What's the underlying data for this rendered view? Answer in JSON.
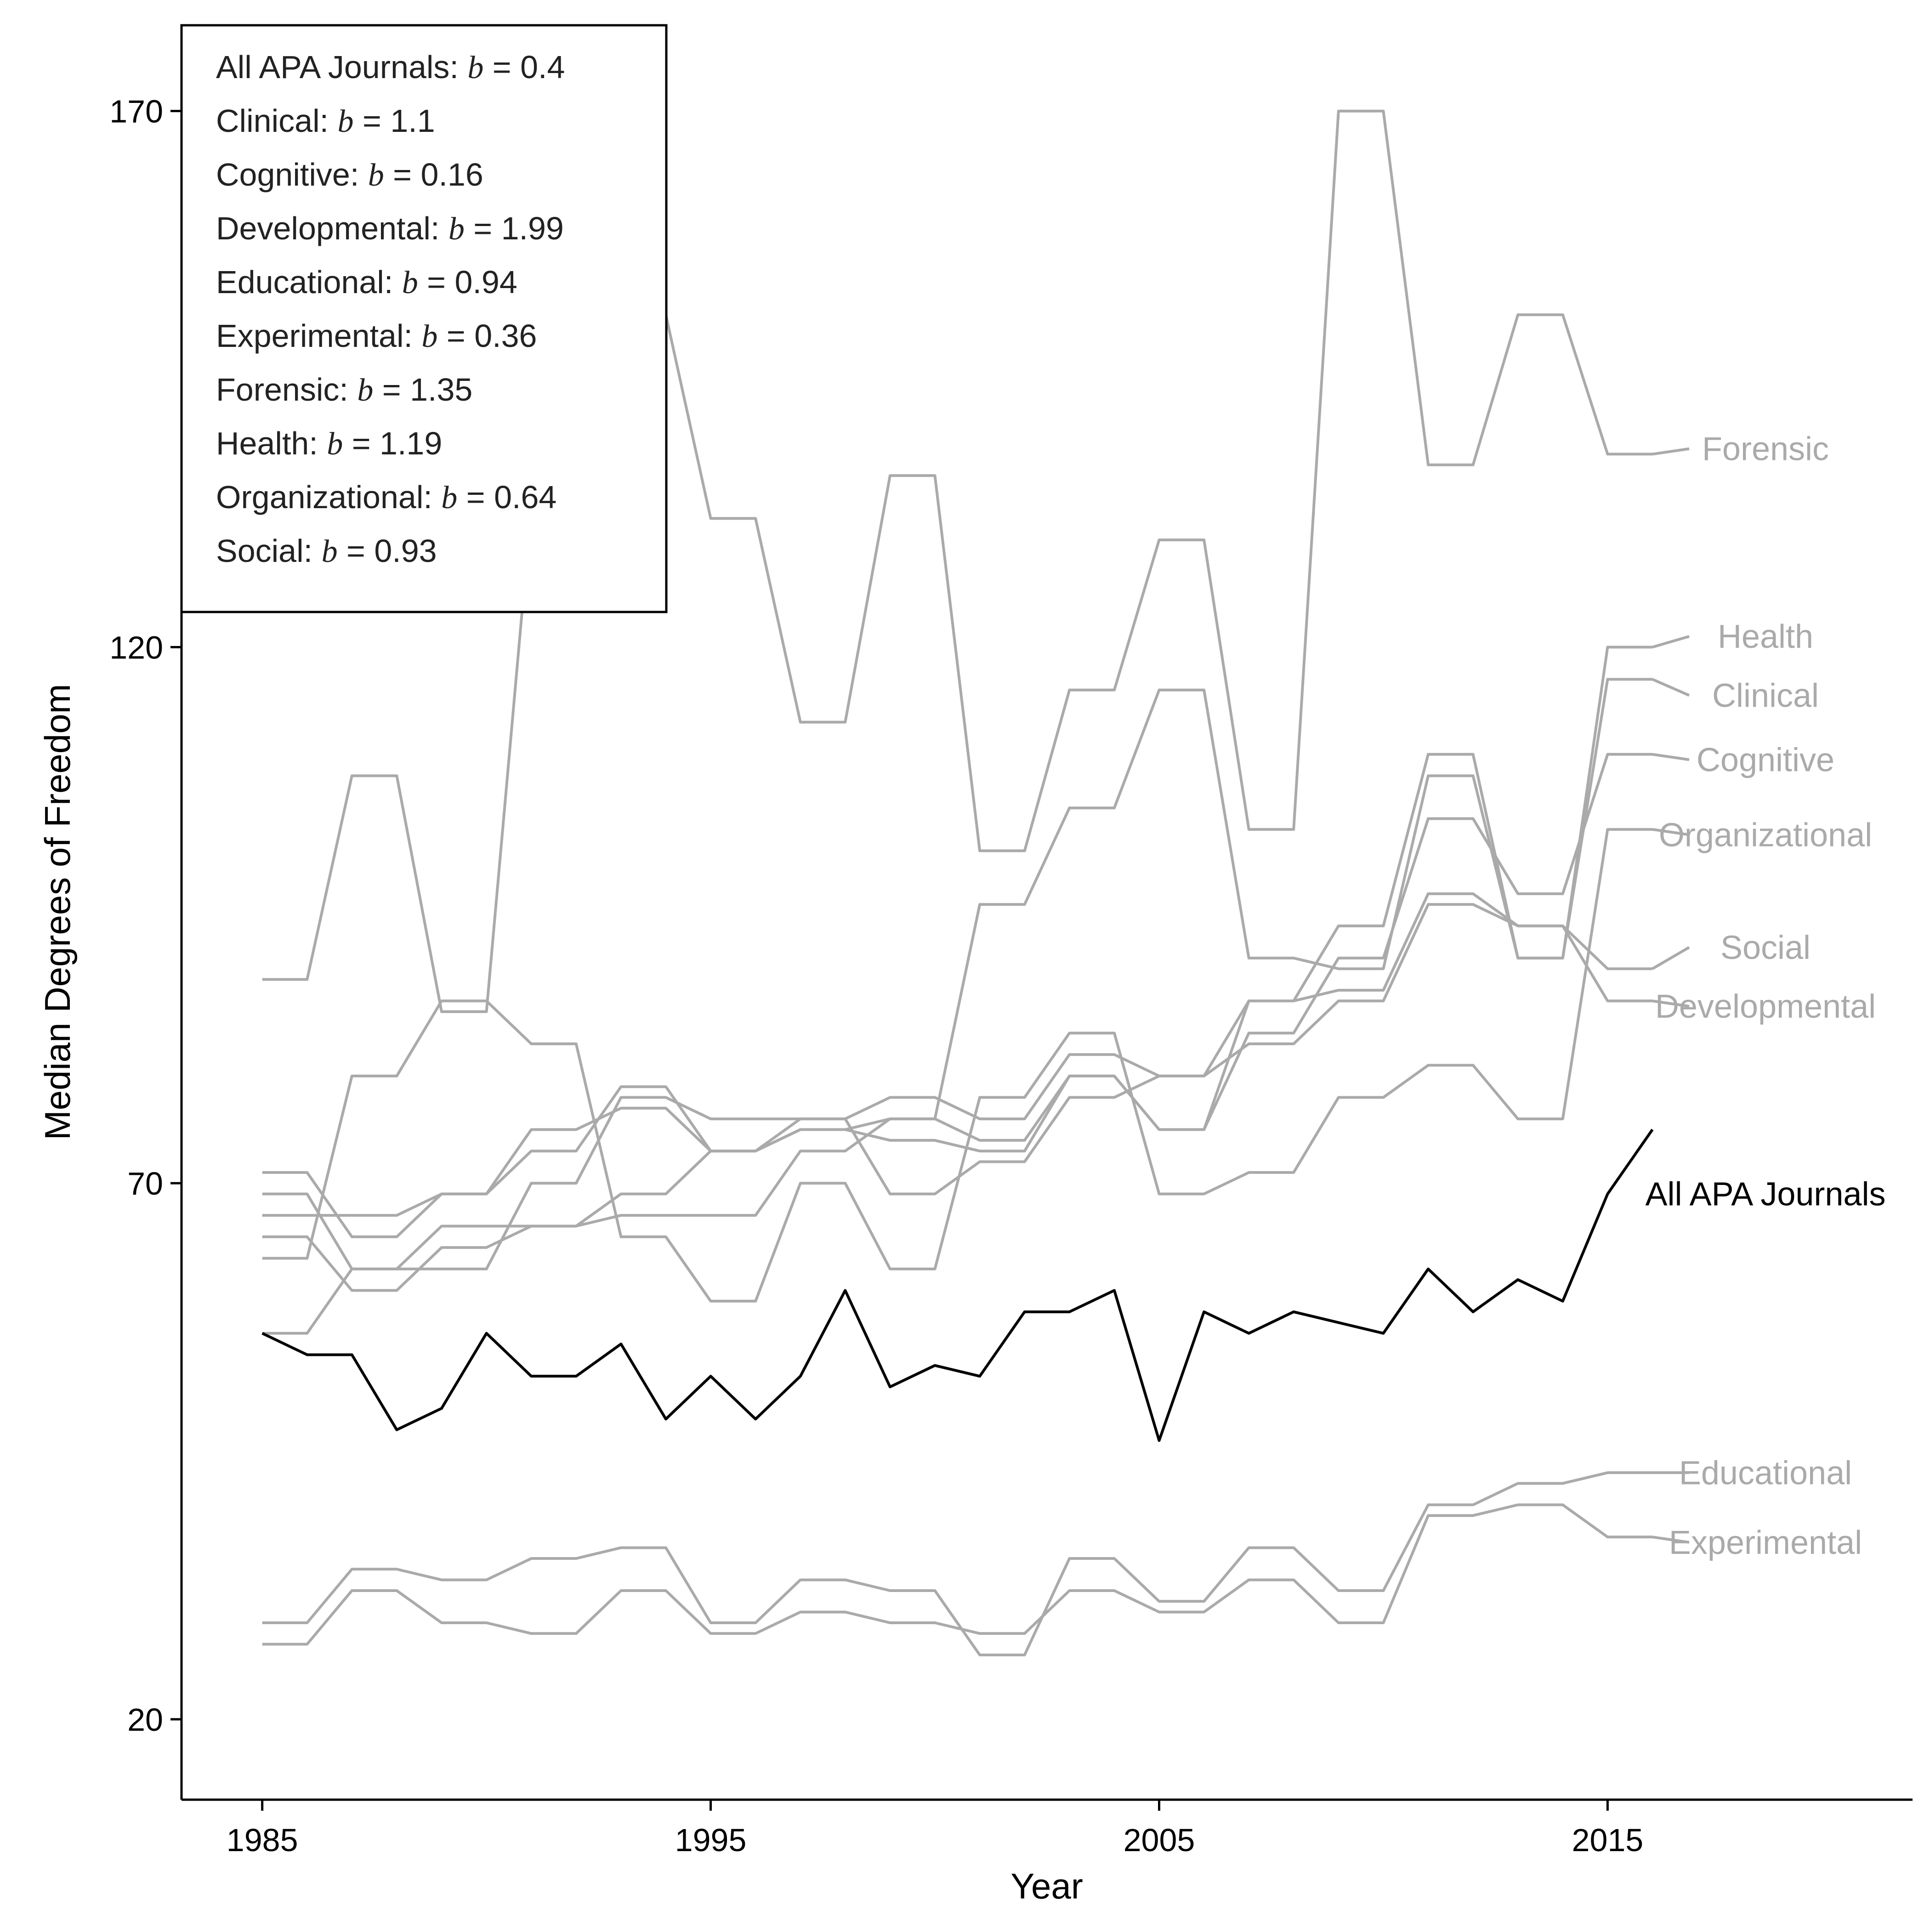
{
  "chart_data": {
    "type": "line",
    "xlabel": "Year",
    "ylabel": "Median Degrees of Freedom",
    "xlim": [
      1983.2,
      2021.8
    ],
    "ylim": [
      12.5,
      178
    ],
    "xticks": [
      1985,
      1995,
      2005,
      2015
    ],
    "yticks": [
      20,
      70,
      120,
      170
    ],
    "legend": {
      "placement": "top-left",
      "entries": [
        {
          "name": "All APA Journals",
          "b": "0.4"
        },
        {
          "name": "Clinical",
          "b": "1.1"
        },
        {
          "name": "Cognitive",
          "b": "0.16"
        },
        {
          "name": "Developmental",
          "b": "1.99"
        },
        {
          "name": "Educational",
          "b": "0.94"
        },
        {
          "name": "Experimental",
          "b": "0.36"
        },
        {
          "name": "Forensic",
          "b": "1.35"
        },
        {
          "name": "Health",
          "b": "1.19"
        },
        {
          "name": "Organizational",
          "b": "0.64"
        },
        {
          "name": "Social",
          "b": "0.93"
        }
      ]
    },
    "x": [
      1985,
      1986,
      1987,
      1988,
      1989,
      1990,
      1991,
      1992,
      1993,
      1994,
      1995,
      1996,
      1997,
      1998,
      1999,
      2000,
      2001,
      2002,
      2003,
      2004,
      2005,
      2006,
      2007,
      2008,
      2009,
      2010,
      2011,
      2012,
      2013,
      2014,
      2015,
      2016
    ],
    "series": [
      {
        "name": "Forensic",
        "color": "#aaaaaa",
        "label_y": 138.5,
        "values": [
          89,
          89,
          108,
          108,
          86,
          86,
          133,
          133,
          151,
          151,
          132,
          132,
          113,
          113,
          136,
          136,
          101,
          101,
          116,
          116,
          130,
          130,
          103,
          103,
          170,
          170,
          137,
          137,
          151,
          151,
          138,
          138
        ]
      },
      {
        "name": "Health",
        "color": "#aaaaaa",
        "label_y": 121,
        "values": [
          71,
          71,
          65,
          65,
          69,
          69,
          73,
          73,
          79,
          79,
          73,
          73,
          75,
          75,
          74,
          74,
          73,
          73,
          80,
          80,
          75,
          75,
          87,
          87,
          94,
          94,
          110,
          110,
          91,
          91,
          120,
          120
        ]
      },
      {
        "name": "Clinical",
        "color": "#aaaaaa",
        "label_y": 115.5,
        "values": [
          56,
          56,
          62,
          62,
          66,
          66,
          66,
          66,
          67,
          67,
          67,
          67,
          73,
          73,
          76,
          76,
          96,
          96,
          105,
          105,
          116,
          116,
          91,
          91,
          90,
          90,
          108,
          108,
          91,
          91,
          117,
          117
        ]
      },
      {
        "name": "Cognitive",
        "color": "#aaaaaa",
        "label_y": 109.5,
        "values": [
          67,
          67,
          67,
          67,
          69,
          69,
          75,
          75,
          77,
          77,
          73,
          73,
          75,
          75,
          76,
          76,
          74,
          74,
          80,
          80,
          75,
          75,
          84,
          84,
          91,
          91,
          104,
          104,
          97,
          97,
          110,
          110
        ]
      },
      {
        "name": "Organizational",
        "color": "#aaaaaa",
        "label_y": 102.5,
        "values": [
          63,
          63,
          80,
          80,
          87,
          87,
          83,
          83,
          65,
          65,
          59,
          59,
          70,
          70,
          62,
          62,
          78,
          78,
          84,
          84,
          69,
          69,
          71,
          71,
          78,
          78,
          81,
          81,
          76,
          76,
          103,
          103
        ]
      },
      {
        "name": "Social",
        "color": "#aaaaaa",
        "label_y": 92,
        "values": [
          69,
          69,
          62,
          62,
          62,
          62,
          70,
          70,
          78,
          78,
          76,
          76,
          76,
          76,
          78,
          78,
          76,
          76,
          82,
          82,
          80,
          80,
          87,
          87,
          88,
          88,
          97,
          97,
          94,
          94,
          90,
          90
        ]
      },
      {
        "name": "Developmental",
        "color": "#aaaaaa",
        "label_y": 86.5,
        "values": [
          65,
          65,
          60,
          60,
          64,
          64,
          66,
          66,
          69,
          69,
          73,
          73,
          76,
          76,
          69,
          69,
          72,
          72,
          78,
          78,
          80,
          80,
          83,
          83,
          87,
          87,
          96,
          96,
          94,
          94,
          87,
          87
        ]
      },
      {
        "name": "Educational",
        "color": "#aaaaaa",
        "label_y": 43,
        "values": [
          29,
          29,
          34,
          34,
          33,
          33,
          35,
          35,
          36,
          36,
          29,
          29,
          33,
          33,
          32,
          32,
          26,
          26,
          35,
          35,
          31,
          31,
          36,
          36,
          32,
          32,
          40,
          40,
          42,
          42,
          43,
          43
        ]
      },
      {
        "name": "Experimental",
        "color": "#aaaaaa",
        "label_y": 36.5,
        "values": [
          27,
          27,
          32,
          32,
          29,
          29,
          28,
          28,
          32,
          32,
          28,
          28,
          30,
          30,
          29,
          29,
          28,
          28,
          32,
          32,
          30,
          30,
          33,
          33,
          29,
          29,
          39,
          39,
          40,
          40,
          37,
          37
        ]
      },
      {
        "name": "All APA Journals",
        "color": "#000000",
        "label_y": 69,
        "values": [
          56,
          54,
          54,
          47,
          49,
          56,
          52,
          52,
          55,
          48,
          52,
          48,
          52,
          60,
          51,
          53,
          52,
          58,
          58,
          60,
          46,
          58,
          56,
          58,
          57,
          56,
          62,
          58,
          61,
          59,
          69,
          75
        ]
      }
    ]
  }
}
